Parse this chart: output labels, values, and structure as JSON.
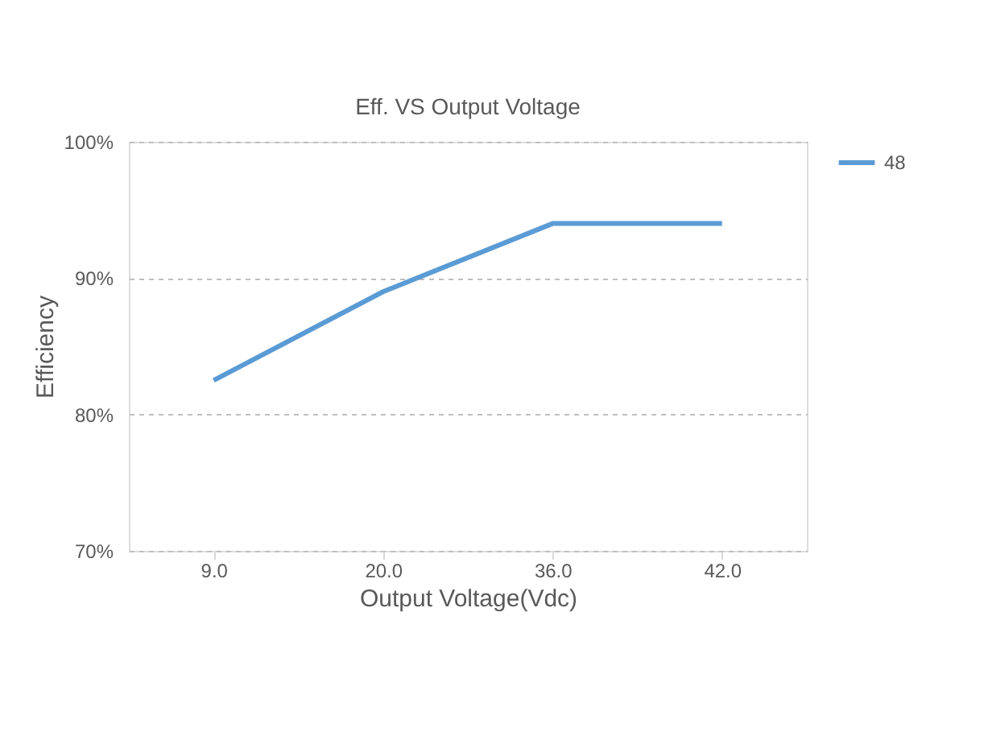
{
  "chart_data": {
    "type": "line",
    "title": "Eff. VS Output Voltage",
    "xlabel": "Output Voltage(Vdc)",
    "ylabel": "Efficiency",
    "categories": [
      "9.0",
      "20.0",
      "36.0",
      "42.0"
    ],
    "series": [
      {
        "name": "48",
        "color": "#5b9bd5",
        "values": [
          82.5,
          89,
          94,
          94
        ]
      }
    ],
    "ylim": [
      70,
      100
    ],
    "yticks": [
      {
        "value": 70,
        "label": "70%"
      },
      {
        "value": 80,
        "label": "80%"
      },
      {
        "value": 90,
        "label": "90%"
      },
      {
        "value": 100,
        "label": "100%"
      }
    ],
    "grid": "y",
    "legend": "right",
    "line_style": "solid",
    "marker": "none"
  }
}
